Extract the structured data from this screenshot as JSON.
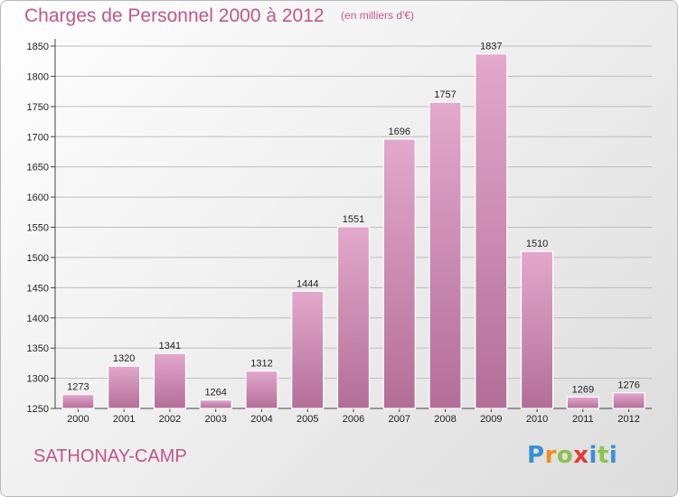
{
  "header": {
    "title": "Charges de Personnel 2000 à 2012",
    "subtitle": "(en milliers d'€)"
  },
  "footer": {
    "place": "SATHONAY-CAMP",
    "logo_text": "Proxiti"
  },
  "colors": {
    "bar_fill_top": "#e3a8cc",
    "bar_fill_bottom": "#b36e98",
    "title": "#c0578a",
    "grid": "#bdbdbd"
  },
  "chart_data": {
    "type": "bar",
    "title": "Charges de Personnel 2000 à 2012",
    "subtitle": "(en milliers d'€)",
    "categories": [
      "2000",
      "2001",
      "2002",
      "2003",
      "2004",
      "2005",
      "2006",
      "2007",
      "2008",
      "2009",
      "2010",
      "2011",
      "2012"
    ],
    "values": [
      1273,
      1320,
      1341,
      1264,
      1312,
      1444,
      1551,
      1696,
      1757,
      1837,
      1510,
      1269,
      1276
    ],
    "ylim": [
      1250,
      1850
    ],
    "yticks": [
      1250,
      1300,
      1350,
      1400,
      1450,
      1500,
      1550,
      1600,
      1650,
      1700,
      1750,
      1800,
      1850
    ],
    "grid": true,
    "data_labels": true
  }
}
